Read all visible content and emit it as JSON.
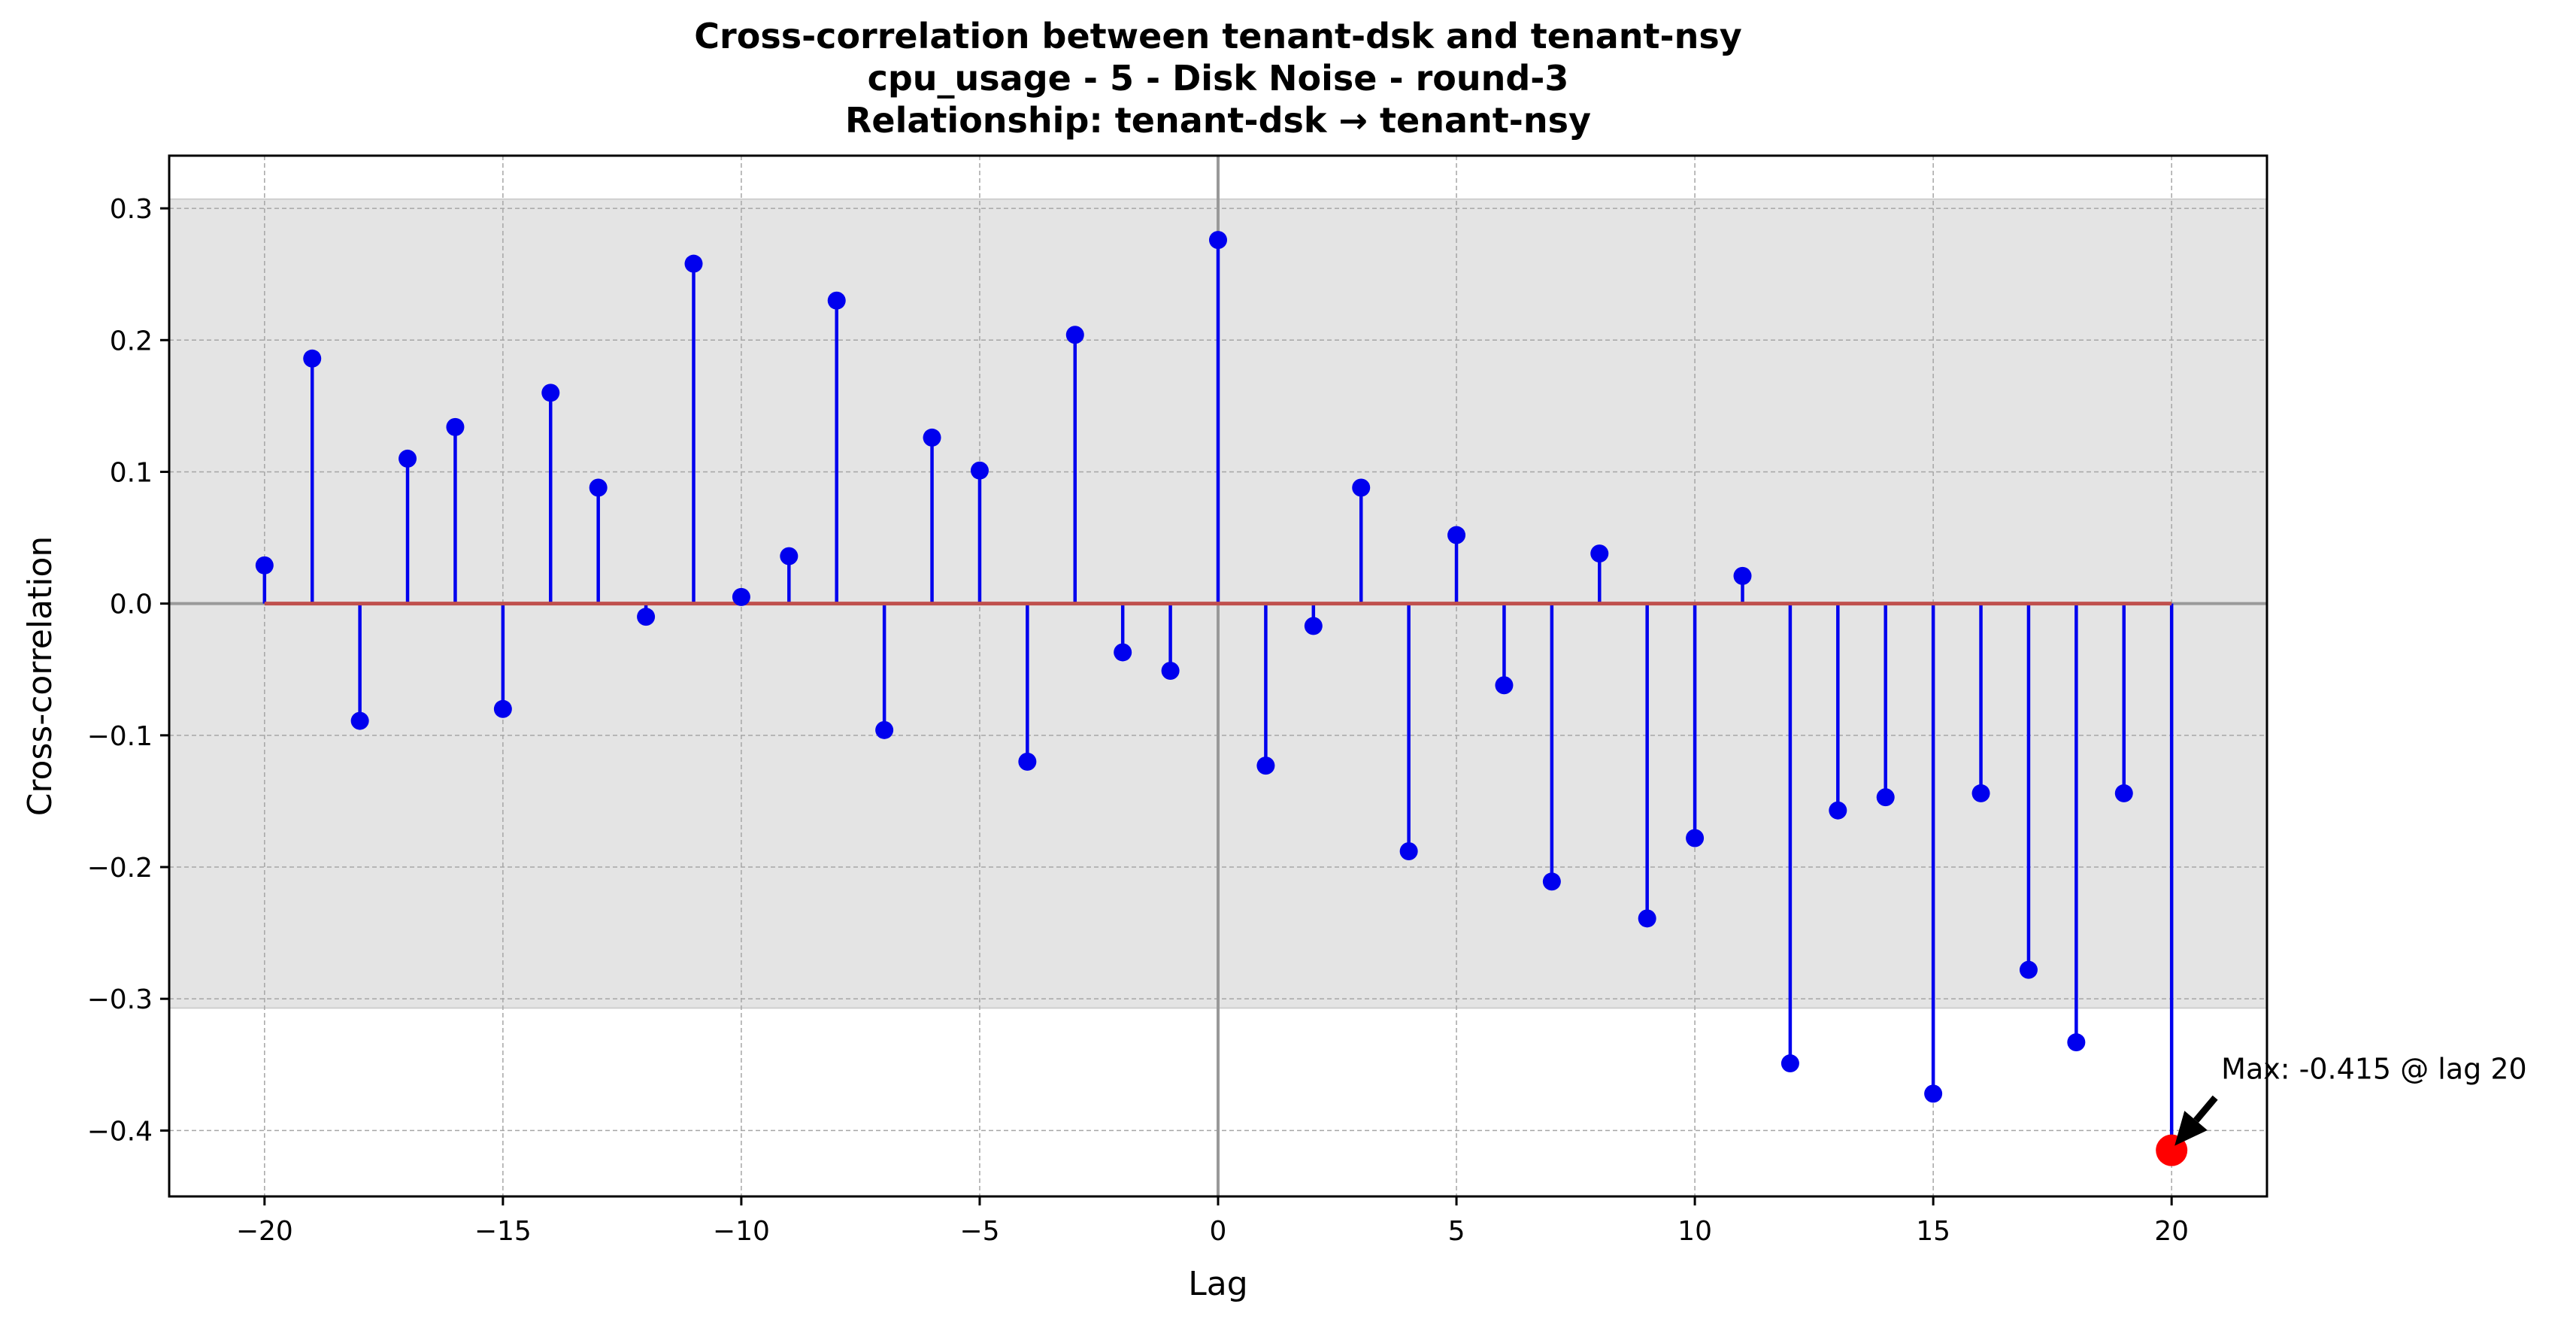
{
  "chart_data": {
    "type": "stem",
    "title_lines": [
      "Cross-correlation between tenant-dsk and tenant-nsy",
      "cpu_usage - 5 - Disk Noise - round-3",
      "Relationship: tenant-dsk → tenant-nsy"
    ],
    "xlabel": "Lag",
    "ylabel": "Cross-correlation",
    "xlim": [
      -22,
      22
    ],
    "ylim": [
      -0.45,
      0.34
    ],
    "xticks": [
      -20,
      -15,
      -10,
      -5,
      0,
      5,
      10,
      15,
      20
    ],
    "xtick_labels": [
      "−20",
      "−15",
      "−10",
      "−5",
      "0",
      "5",
      "10",
      "15",
      "20"
    ],
    "yticks": [
      -0.4,
      -0.3,
      -0.2,
      -0.1,
      0.0,
      0.1,
      0.2,
      0.3
    ],
    "ytick_labels": [
      "−0.4",
      "−0.3",
      "−0.2",
      "−0.1",
      "0.0",
      "0.1",
      "0.2",
      "0.3"
    ],
    "grid": true,
    "confidence_band": [
      -0.307,
      0.307
    ],
    "x": [
      -20,
      -19,
      -18,
      -17,
      -16,
      -15,
      -14,
      -13,
      -12,
      -11,
      -10,
      -9,
      -8,
      -7,
      -6,
      -5,
      -4,
      -3,
      -2,
      -1,
      0,
      1,
      2,
      3,
      4,
      5,
      6,
      7,
      8,
      9,
      10,
      11,
      12,
      13,
      14,
      15,
      16,
      17,
      18,
      19,
      20
    ],
    "values": [
      0.029,
      0.186,
      -0.089,
      0.11,
      0.134,
      -0.08,
      0.16,
      0.088,
      -0.01,
      0.258,
      0.005,
      0.036,
      0.23,
      -0.096,
      0.126,
      0.101,
      -0.12,
      0.204,
      -0.037,
      -0.051,
      0.276,
      -0.123,
      -0.017,
      0.088,
      -0.188,
      0.052,
      -0.062,
      -0.211,
      0.038,
      -0.239,
      -0.178,
      0.021,
      -0.349,
      -0.157,
      -0.147,
      -0.372,
      -0.144,
      -0.278,
      -0.333,
      -0.144,
      -0.415
    ],
    "max_point": {
      "x": 20,
      "y": -0.415
    },
    "annotation": "Max: -0.415 @ lag 20",
    "colors": {
      "stem": "#0000ee",
      "baseline": "#c0504d",
      "max_marker": "#ff0000",
      "band": "#e4e4e4",
      "grid": "#a6a6a6",
      "zero_lines": "#999999"
    }
  }
}
